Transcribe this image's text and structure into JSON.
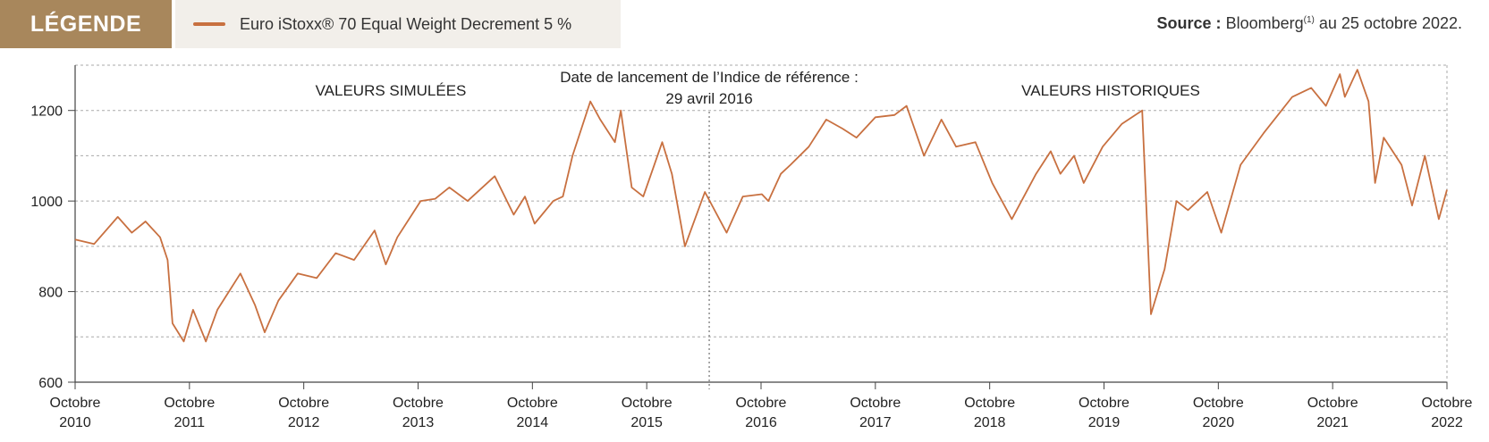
{
  "legend": {
    "title": "LÉGENDE",
    "series_label": "Euro iStoxx® 70 Equal Weight Decrement 5 %"
  },
  "source": {
    "label": "Source :",
    "text": "Bloomberg",
    "superscript": "(1)",
    "suffix": " au 25 octobre 2022."
  },
  "chart_data": {
    "type": "line",
    "title": "",
    "xlabel": "",
    "ylabel": "",
    "ylim": [
      600,
      1300
    ],
    "yticks": [
      600,
      800,
      1000,
      1200
    ],
    "grid": true,
    "x_tick_labels": [
      [
        "Octobre",
        "2010"
      ],
      [
        "Octobre",
        "2011"
      ],
      [
        "Octobre",
        "2012"
      ],
      [
        "Octobre",
        "2013"
      ],
      [
        "Octobre",
        "2014"
      ],
      [
        "Octobre",
        "2015"
      ],
      [
        "Octobre",
        "2016"
      ],
      [
        "Octobre",
        "2017"
      ],
      [
        "Octobre",
        "2018"
      ],
      [
        "Octobre",
        "2019"
      ],
      [
        "Octobre",
        "2020"
      ],
      [
        "Octobre",
        "2021"
      ],
      [
        "Octobre",
        "2022"
      ]
    ],
    "annotations": {
      "simulated": "VALEURS SIMULÉES",
      "historical": "VALEURS HISTORIQUES",
      "launch_line1": "Date de lancement de l’Indice de référence :",
      "launch_line2": "29 avril  2016"
    },
    "launch_date": "2016-04-29",
    "series": [
      {
        "name": "Euro iStoxx® 70 Equal Weight Decrement 5 %",
        "color": "#c87040",
        "points": [
          [
            "2010-10-01",
            915
          ],
          [
            "2010-12-01",
            905
          ],
          [
            "2011-02-15",
            965
          ],
          [
            "2011-04-01",
            930
          ],
          [
            "2011-05-15",
            955
          ],
          [
            "2011-07-01",
            920
          ],
          [
            "2011-07-25",
            870
          ],
          [
            "2011-08-10",
            730
          ],
          [
            "2011-09-15",
            690
          ],
          [
            "2011-10-15",
            760
          ],
          [
            "2011-11-25",
            690
          ],
          [
            "2012-01-01",
            760
          ],
          [
            "2012-03-15",
            840
          ],
          [
            "2012-05-01",
            770
          ],
          [
            "2012-06-01",
            710
          ],
          [
            "2012-07-15",
            780
          ],
          [
            "2012-09-15",
            840
          ],
          [
            "2012-11-15",
            830
          ],
          [
            "2013-01-15",
            885
          ],
          [
            "2013-03-15",
            870
          ],
          [
            "2013-05-20",
            935
          ],
          [
            "2013-06-25",
            860
          ],
          [
            "2013-08-01",
            920
          ],
          [
            "2013-10-15",
            1000
          ],
          [
            "2013-12-01",
            1005
          ],
          [
            "2014-01-15",
            1030
          ],
          [
            "2014-03-15",
            1000
          ],
          [
            "2014-06-10",
            1055
          ],
          [
            "2014-08-10",
            970
          ],
          [
            "2014-09-15",
            1010
          ],
          [
            "2014-10-16",
            950
          ],
          [
            "2014-12-15",
            1000
          ],
          [
            "2015-01-15",
            1010
          ],
          [
            "2015-02-15",
            1100
          ],
          [
            "2015-04-13",
            1220
          ],
          [
            "2015-05-15",
            1180
          ],
          [
            "2015-07-01",
            1130
          ],
          [
            "2015-07-20",
            1200
          ],
          [
            "2015-08-24",
            1030
          ],
          [
            "2015-09-30",
            1010
          ],
          [
            "2015-11-30",
            1130
          ],
          [
            "2015-12-31",
            1060
          ],
          [
            "2016-02-11",
            900
          ],
          [
            "2016-04-15",
            1020
          ],
          [
            "2016-06-24",
            930
          ],
          [
            "2016-08-15",
            1010
          ],
          [
            "2016-10-15",
            1015
          ],
          [
            "2016-11-05",
            1000
          ],
          [
            "2016-12-15",
            1060
          ],
          [
            "2017-01-15",
            1080
          ],
          [
            "2017-03-15",
            1120
          ],
          [
            "2017-05-10",
            1180
          ],
          [
            "2017-07-01",
            1160
          ],
          [
            "2017-08-15",
            1140
          ],
          [
            "2017-10-15",
            1185
          ],
          [
            "2017-12-15",
            1190
          ],
          [
            "2018-01-23",
            1210
          ],
          [
            "2018-03-20",
            1100
          ],
          [
            "2018-05-15",
            1180
          ],
          [
            "2018-07-01",
            1120
          ],
          [
            "2018-09-01",
            1130
          ],
          [
            "2018-10-25",
            1040
          ],
          [
            "2018-12-27",
            960
          ],
          [
            "2019-03-15",
            1060
          ],
          [
            "2019-05-01",
            1110
          ],
          [
            "2019-06-01",
            1060
          ],
          [
            "2019-07-15",
            1100
          ],
          [
            "2019-08-15",
            1040
          ],
          [
            "2019-10-15",
            1120
          ],
          [
            "2019-12-15",
            1170
          ],
          [
            "2020-02-19",
            1200
          ],
          [
            "2020-03-18",
            750
          ],
          [
            "2020-05-01",
            850
          ],
          [
            "2020-06-08",
            1000
          ],
          [
            "2020-07-15",
            980
          ],
          [
            "2020-09-15",
            1020
          ],
          [
            "2020-10-30",
            930
          ],
          [
            "2020-12-31",
            1080
          ],
          [
            "2021-03-15",
            1150
          ],
          [
            "2021-06-15",
            1230
          ],
          [
            "2021-08-15",
            1250
          ],
          [
            "2021-10-01",
            1210
          ],
          [
            "2021-11-15",
            1280
          ],
          [
            "2021-12-01",
            1230
          ],
          [
            "2022-01-10",
            1290
          ],
          [
            "2022-02-15",
            1220
          ],
          [
            "2022-03-08",
            1040
          ],
          [
            "2022-04-05",
            1140
          ],
          [
            "2022-06-01",
            1080
          ],
          [
            "2022-07-05",
            990
          ],
          [
            "2022-08-15",
            1100
          ],
          [
            "2022-09-29",
            960
          ],
          [
            "2022-10-25",
            1025
          ]
        ]
      }
    ]
  }
}
